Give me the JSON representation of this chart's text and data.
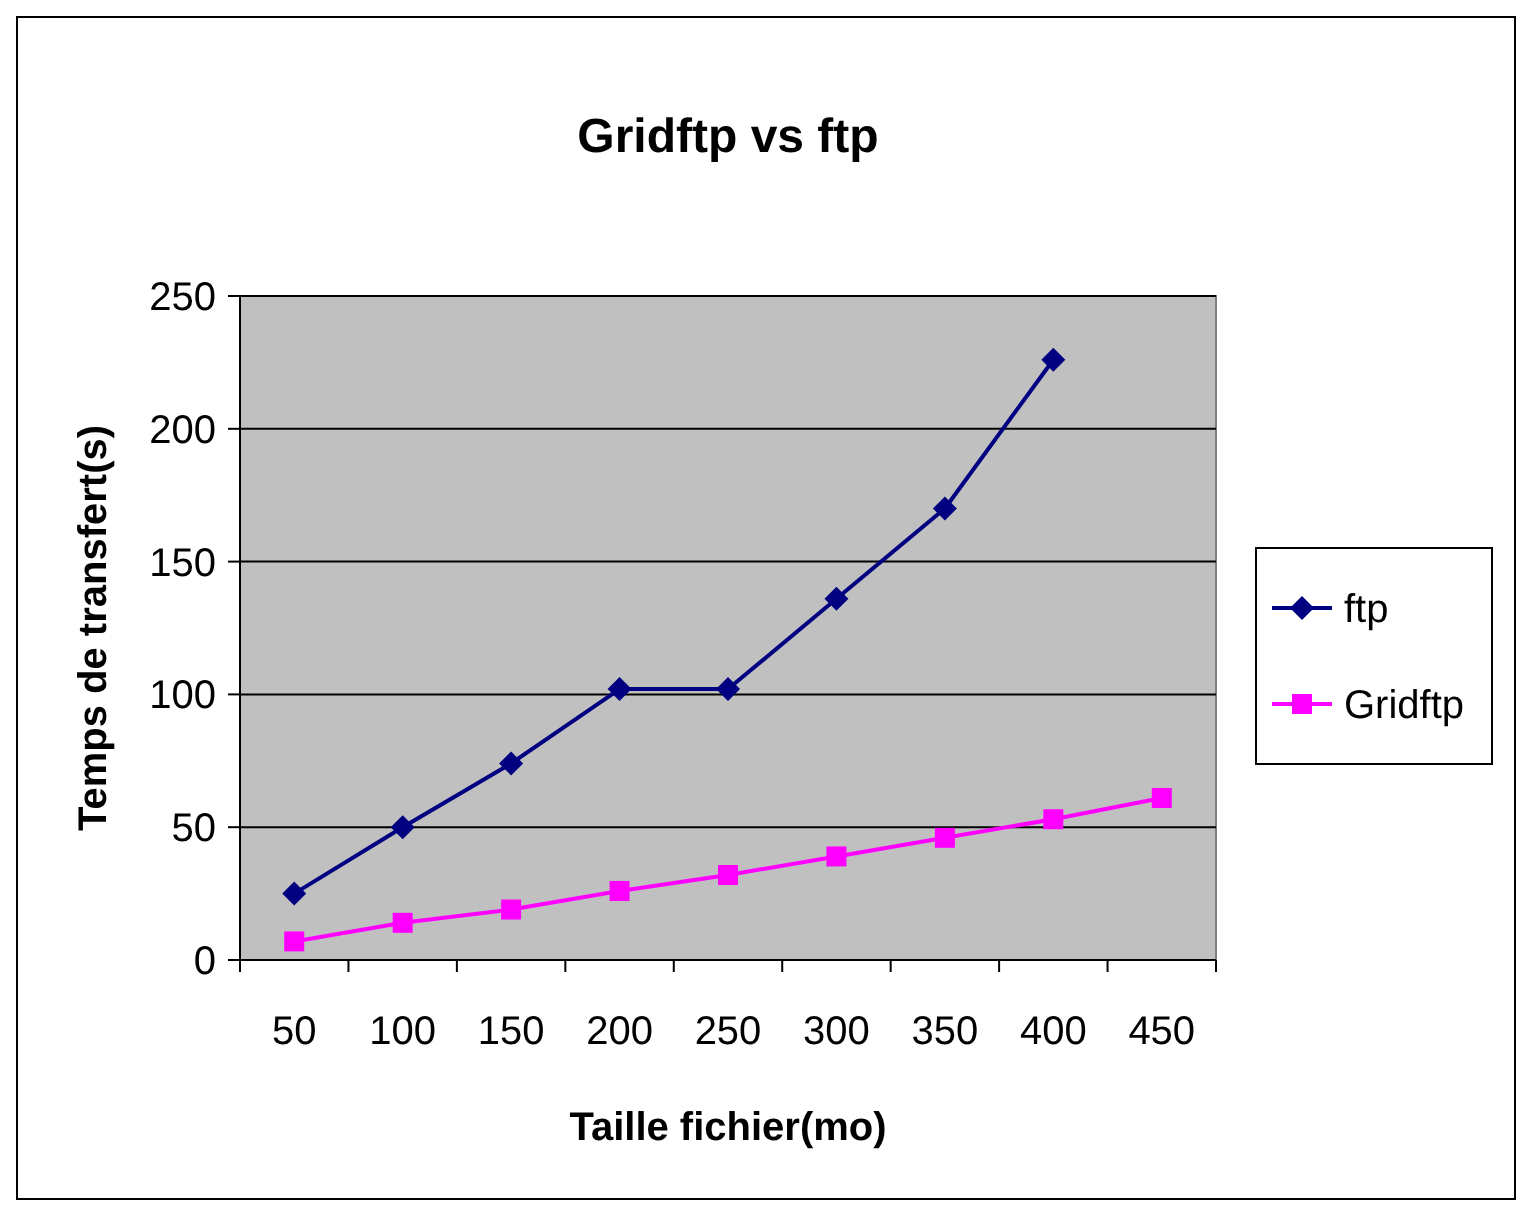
{
  "chart_data": {
    "type": "line",
    "title": "Gridftp vs ftp",
    "xlabel": "Taille fichier(mo)",
    "ylabel": "Temps de transfert(s)",
    "categories": [
      "50",
      "100",
      "150",
      "200",
      "250",
      "300",
      "350",
      "400",
      "450"
    ],
    "series": [
      {
        "name": "ftp",
        "color": "#000080",
        "marker": "diamond",
        "values": [
          25,
          50,
          74,
          102,
          102,
          136,
          170,
          226,
          null
        ]
      },
      {
        "name": "Gridftp",
        "color": "#ff00ff",
        "marker": "square",
        "values": [
          7,
          14,
          19,
          26,
          32,
          39,
          46,
          53,
          61
        ]
      }
    ],
    "ylim": [
      0,
      250
    ],
    "yticks": [
      0,
      50,
      100,
      150,
      200,
      250
    ],
    "grid": "y",
    "legend": "right",
    "line_style": "solid"
  }
}
